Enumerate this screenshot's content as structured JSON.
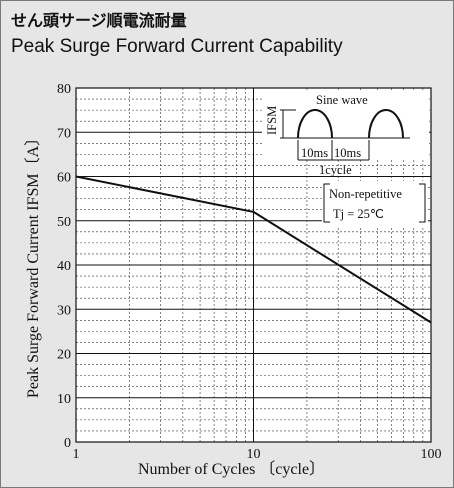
{
  "title_ja": "せん頭サージ順電流耐量",
  "title_en": "Peak Surge Forward Current Capability",
  "chart_data": {
    "type": "line",
    "xscale": "log",
    "xlim": [
      1,
      100
    ],
    "ylim": [
      0,
      80
    ],
    "xticks": [
      "1",
      "10",
      "100"
    ],
    "yticks": [
      "0",
      "10",
      "20",
      "30",
      "40",
      "50",
      "60",
      "70",
      "80"
    ],
    "xlabel": "Number of Cycles 〔cycle〕",
    "ylabel": "Peak Surge Forward Current IFSM〔A〕",
    "grid": true,
    "series": [
      {
        "x": [
          1,
          10,
          100
        ],
        "y": [
          60,
          52,
          27
        ]
      }
    ],
    "inset": {
      "title": "Sine wave",
      "amp_label": "IFSM",
      "seg1": "10ms",
      "seg2": "10ms",
      "cycle": "1cycle",
      "cond1": "Non-repetitive",
      "cond2": "Tj = 25℃"
    }
  }
}
